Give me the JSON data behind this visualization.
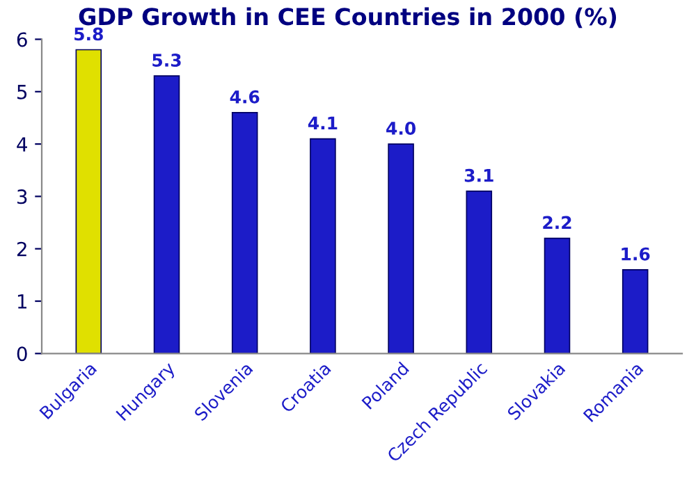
{
  "chart_data": {
    "type": "bar",
    "title": "GDP Growth in CEE Countries in 2000 (%)",
    "categories": [
      "Bulgaria",
      "Hungary",
      "Slovenia",
      "Croatia",
      "Poland",
      "Czech Republic",
      "Slovakia",
      "Romania"
    ],
    "values": [
      5.8,
      5.3,
      4.6,
      4.1,
      4.0,
      3.1,
      2.2,
      1.6
    ],
    "colors": [
      "#e0e000",
      "#1c1cc8",
      "#1c1cc8",
      "#1c1cc8",
      "#1c1cc8",
      "#1c1cc8",
      "#1c1cc8",
      "#1c1cc8"
    ],
    "value_labels": [
      "5.8",
      "5.3",
      "4.6",
      "4.1",
      "4.0",
      "3.1",
      "2.2",
      "1.6"
    ],
    "ylim": [
      0,
      6
    ],
    "yticks": [
      0,
      1,
      2,
      3,
      4,
      5,
      6
    ],
    "grid": false,
    "legend": false
  }
}
